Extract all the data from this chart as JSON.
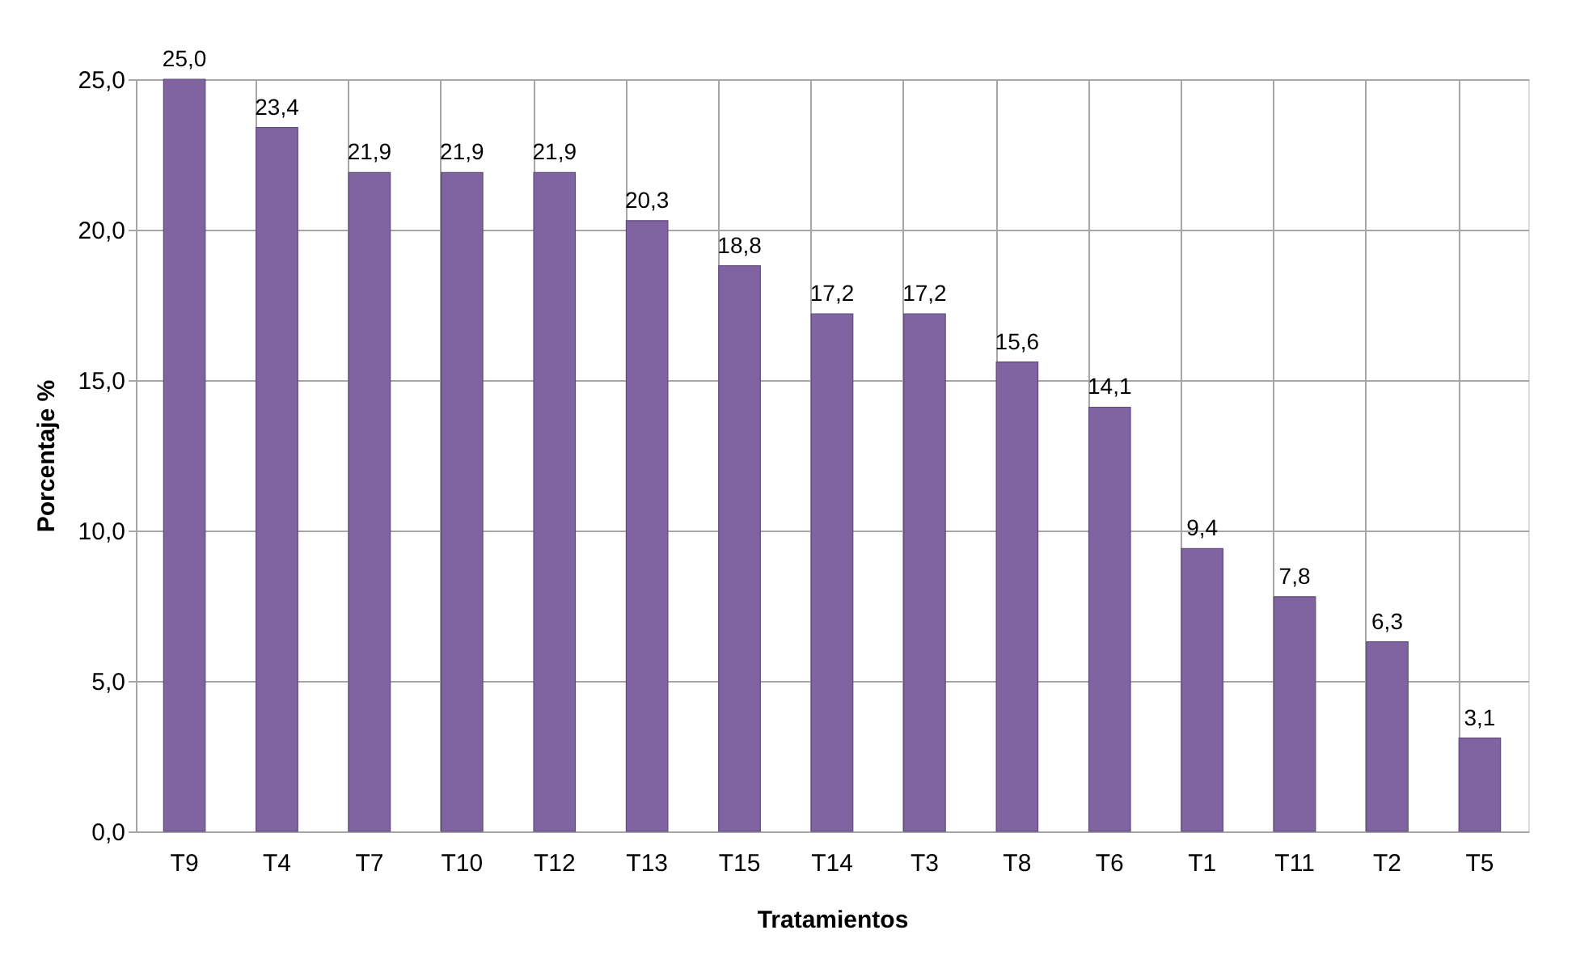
{
  "chart_data": {
    "type": "bar",
    "xlabel": "Tratamientos",
    "ylabel": "Porcentaje %",
    "categories": [
      "T9",
      "T4",
      "T7",
      "T10",
      "T12",
      "T13",
      "T15",
      "T14",
      "T3",
      "T8",
      "T6",
      "T1",
      "T11",
      "T2",
      "T5"
    ],
    "values": [
      25.0,
      23.4,
      21.9,
      21.9,
      21.9,
      20.3,
      18.8,
      17.2,
      17.2,
      15.6,
      14.1,
      9.4,
      7.8,
      6.3,
      3.1
    ],
    "value_labels": [
      "25,0",
      "23,4",
      "21,9",
      "21,9",
      "21,9",
      "20,3",
      "18,8",
      "17,2",
      "17,2",
      "15,6",
      "14,1",
      "9,4",
      "7,8",
      "6,3",
      "3,1"
    ],
    "color": "#8064a2",
    "ylim": [
      0,
      25
    ],
    "yticks": [
      {
        "value": 0,
        "label": "0,0"
      },
      {
        "value": 5,
        "label": "5,0"
      },
      {
        "value": 10,
        "label": "10,0"
      },
      {
        "value": 15,
        "label": "15,0"
      },
      {
        "value": 20,
        "label": "20,0"
      },
      {
        "value": 25,
        "label": "25,0"
      }
    ],
    "grid": true
  }
}
